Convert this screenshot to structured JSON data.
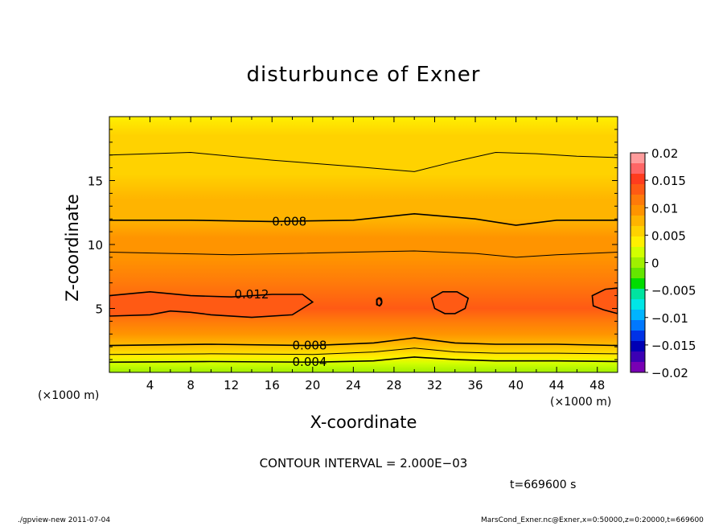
{
  "chart_data": {
    "type": "heatmap",
    "title": "disturbunce of Exner",
    "xlabel": "X-coordinate",
    "ylabel": "Z-coordinate",
    "x_unit": "(×1000 m)",
    "x_unit_right": "(×1000 m)",
    "xlim": [
      0,
      50
    ],
    "ylim": [
      0,
      20
    ],
    "x_ticks": [
      4,
      8,
      12,
      16,
      20,
      24,
      28,
      32,
      36,
      40,
      44,
      48
    ],
    "y_ticks": [
      5,
      10,
      15
    ],
    "colorbar": {
      "levels": [
        0.02,
        0.015,
        0.01,
        0.005,
        0,
        -0.005,
        -0.01,
        -0.015,
        -0.02
      ],
      "labels": [
        "0.02",
        "0.015",
        "0.01",
        "0.005",
        "0",
        "−0.005",
        "−0.01",
        "−0.015",
        "−0.02"
      ],
      "colors": [
        "#ff9c9c",
        "#ff6666",
        "#ff3c1e",
        "#ff5a14",
        "#ff7a0a",
        "#ff9400",
        "#ffb400",
        "#ffd200",
        "#fff000",
        "#d2ff00",
        "#a0f000",
        "#64e600",
        "#00dc00",
        "#00e4a0",
        "#00e6e6",
        "#00b4ff",
        "#0078ff",
        "#0032e6",
        "#0000b4",
        "#3c00b4",
        "#7800b4"
      ]
    },
    "contour_interval_text": "CONTOUR INTERVAL = 2.000E−03",
    "time_text": "t=669600 s",
    "bands": [
      {
        "z": 0.0,
        "v": 0.0
      },
      {
        "z": 0.7,
        "v": 0.002
      },
      {
        "z": 1.2,
        "v": 0.004
      },
      {
        "z": 1.7,
        "v": 0.006
      },
      {
        "z": 2.3,
        "v": 0.008
      },
      {
        "z": 3.0,
        "v": 0.0095
      },
      {
        "z": 4.0,
        "v": 0.011
      },
      {
        "z": 5.0,
        "v": 0.0125
      },
      {
        "z": 7.0,
        "v": 0.011
      },
      {
        "z": 9.0,
        "v": 0.01
      },
      {
        "z": 10.5,
        "v": 0.009
      },
      {
        "z": 12.0,
        "v": 0.008
      },
      {
        "z": 13.5,
        "v": 0.007
      },
      {
        "z": 15.5,
        "v": 0.0065
      },
      {
        "z": 17.0,
        "v": 0.006
      },
      {
        "z": 18.5,
        "v": 0.005
      },
      {
        "z": 20.0,
        "v": 0.0045
      }
    ],
    "contours": [
      {
        "level": 0.004,
        "label": "0.004",
        "label_x": 18,
        "points": [
          [
            0,
            0.8
          ],
          [
            10,
            0.85
          ],
          [
            20,
            0.8
          ],
          [
            26,
            0.9
          ],
          [
            30,
            1.2
          ],
          [
            34,
            1.0
          ],
          [
            38,
            0.9
          ],
          [
            44,
            0.9
          ],
          [
            50,
            0.85
          ]
        ]
      },
      {
        "level": 0.006,
        "label": "",
        "label_x": null,
        "points": [
          [
            0,
            1.4
          ],
          [
            10,
            1.45
          ],
          [
            20,
            1.4
          ],
          [
            26,
            1.6
          ],
          [
            30,
            1.9
          ],
          [
            34,
            1.6
          ],
          [
            38,
            1.5
          ],
          [
            44,
            1.5
          ],
          [
            50,
            1.45
          ]
        ]
      },
      {
        "level": 0.008,
        "label": "0.008",
        "label_x": 18,
        "points": [
          [
            0,
            2.1
          ],
          [
            10,
            2.2
          ],
          [
            20,
            2.1
          ],
          [
            26,
            2.3
          ],
          [
            30,
            2.7
          ],
          [
            34,
            2.3
          ],
          [
            38,
            2.2
          ],
          [
            44,
            2.2
          ],
          [
            50,
            2.1
          ]
        ]
      },
      {
        "level": 0.01,
        "label": "",
        "label_x": null,
        "points": [
          [
            0,
            9.4
          ],
          [
            6,
            9.3
          ],
          [
            12,
            9.2
          ],
          [
            18,
            9.3
          ],
          [
            24,
            9.4
          ],
          [
            30,
            9.5
          ],
          [
            36,
            9.3
          ],
          [
            40,
            9.0
          ],
          [
            44,
            9.2
          ],
          [
            50,
            9.4
          ]
        ]
      },
      {
        "level": 0.008,
        "label": "0.008",
        "label_x": 16,
        "points": [
          [
            0,
            11.9
          ],
          [
            8,
            11.9
          ],
          [
            16,
            11.8
          ],
          [
            24,
            11.9
          ],
          [
            30,
            12.4
          ],
          [
            36,
            12.0
          ],
          [
            40,
            11.5
          ],
          [
            44,
            11.9
          ],
          [
            50,
            11.9
          ]
        ]
      },
      {
        "level": 0.006,
        "label": "",
        "label_x": null,
        "points": [
          [
            0,
            17.0
          ],
          [
            8,
            17.2
          ],
          [
            16,
            16.6
          ],
          [
            24,
            16.1
          ],
          [
            30,
            15.7
          ],
          [
            34,
            16.5
          ],
          [
            38,
            17.2
          ],
          [
            42,
            17.1
          ],
          [
            46,
            16.9
          ],
          [
            50,
            16.8
          ]
        ]
      }
    ],
    "closed_contours": [
      {
        "level": 0.012,
        "label": "0.012",
        "points": [
          [
            0,
            6.0
          ],
          [
            4,
            6.3
          ],
          [
            8,
            6.0
          ],
          [
            12,
            5.9
          ],
          [
            16,
            6.1
          ],
          [
            19,
            6.1
          ],
          [
            20,
            5.5
          ],
          [
            18,
            4.5
          ],
          [
            14,
            4.3
          ],
          [
            10,
            4.5
          ],
          [
            8,
            4.7
          ],
          [
            6,
            4.8
          ],
          [
            4,
            4.5
          ],
          [
            0,
            4.4
          ]
        ]
      },
      {
        "level": 0.012,
        "label": "",
        "points": [
          [
            31.7,
            5.8
          ],
          [
            32.8,
            6.3
          ],
          [
            34.2,
            6.3
          ],
          [
            35.3,
            5.8
          ],
          [
            35.0,
            5.0
          ],
          [
            34.0,
            4.6
          ],
          [
            33.0,
            4.6
          ],
          [
            32.0,
            5.0
          ]
        ]
      },
      {
        "level": 0.012,
        "label": "",
        "points": [
          [
            50,
            6.6
          ],
          [
            48.8,
            6.5
          ],
          [
            47.5,
            6.0
          ],
          [
            47.6,
            5.2
          ],
          [
            48.6,
            4.9
          ],
          [
            50,
            4.6
          ]
        ]
      },
      {
        "level": 0.012,
        "label": "",
        "points": [
          [
            26.3,
            5.7
          ],
          [
            26.6,
            5.8
          ],
          [
            26.8,
            5.5
          ],
          [
            26.6,
            5.2
          ],
          [
            26.3,
            5.3
          ]
        ]
      }
    ],
    "extra_labels": [
      {
        "text": "0",
        "x": 26.5,
        "z": 5.5
      }
    ]
  },
  "footer": {
    "left": "./gpview-new   2011-07-04",
    "right": "MarsCond_Exner.nc@Exner,x=0:50000,z=0:20000,t=669600"
  }
}
